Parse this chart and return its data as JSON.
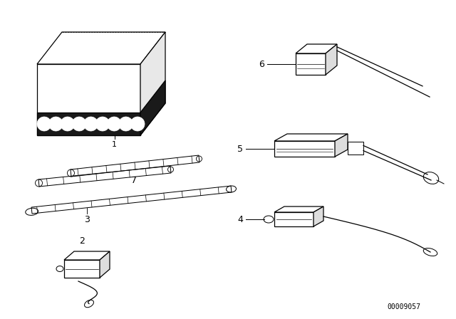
{
  "background_color": "#ffffff",
  "line_color": "#000000",
  "part_number_text": "00009057",
  "figsize": [
    6.4,
    4.48
  ],
  "dpi": 100
}
